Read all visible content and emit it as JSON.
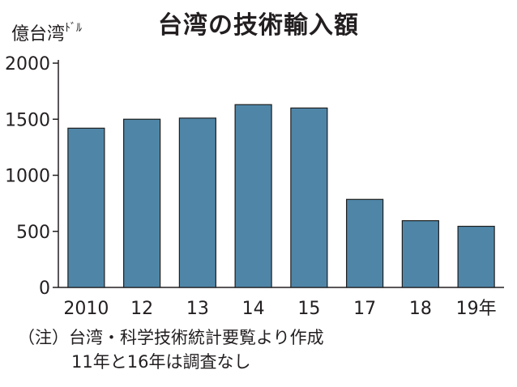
{
  "title": "台湾の技術輸入額",
  "unit": {
    "main": "億台湾",
    "suffix": "ﾄﾞﾙ"
  },
  "note": {
    "line1": "（注）台湾・科学技術統計要覧より作成",
    "line2": "11年と16年は調査なし"
  },
  "colors": {
    "bar": "#4f86a8",
    "bar_stroke": "#1e1e1e",
    "axis": "#231f20"
  },
  "chart_data": {
    "type": "bar",
    "title": "台湾の技術輸入額",
    "ylabel": "億台湾ﾄﾞﾙ",
    "xlabel": "",
    "categories": [
      "2010",
      "12",
      "13",
      "14",
      "15",
      "17",
      "18",
      "19年"
    ],
    "values": [
      1420,
      1500,
      1510,
      1630,
      1600,
      785,
      595,
      545
    ],
    "ylim": [
      0,
      2000
    ],
    "yticks": [
      0,
      500,
      1000,
      1500,
      2000
    ],
    "grid": false,
    "legend": "none"
  }
}
